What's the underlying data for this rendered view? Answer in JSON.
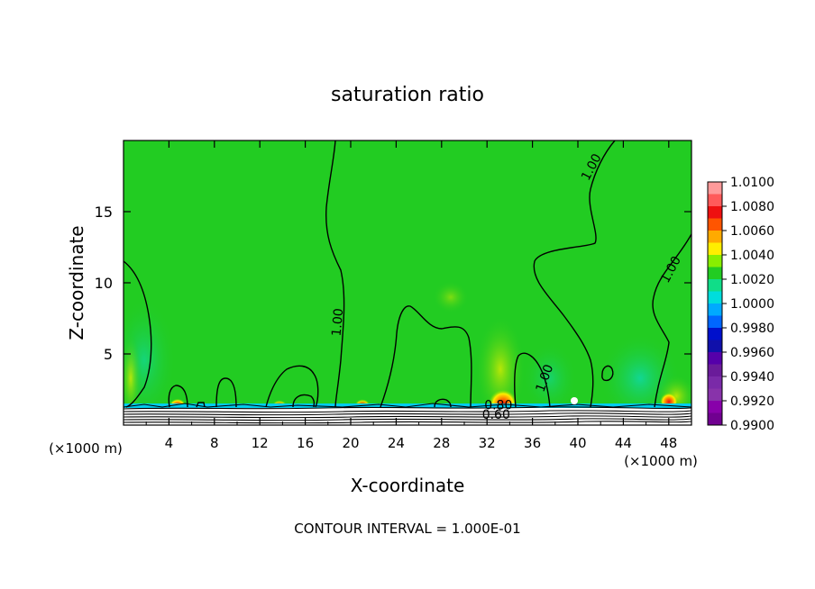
{
  "chart_data": {
    "type": "contour",
    "title": "saturation ratio",
    "xlabel": "X-coordinate",
    "ylabel": "Z-coordinate",
    "x_unit_left": "(×1000 m)",
    "x_unit_right": "(×1000 m)",
    "footnote": "CONTOUR INTERVAL = 1.000E-01",
    "xlim": [
      0,
      50
    ],
    "ylim": [
      0,
      20
    ],
    "x_ticks": [
      4,
      8,
      12,
      16,
      20,
      24,
      28,
      32,
      36,
      40,
      44,
      48
    ],
    "y_ticks": [
      5,
      10,
      15
    ],
    "x_tick_labels": [
      "4",
      "8",
      "12",
      "16",
      "20",
      "24",
      "28",
      "32",
      "36",
      "40",
      "44",
      "48"
    ],
    "y_tick_labels": [
      "5",
      "10",
      "15"
    ],
    "contour_labels": [
      {
        "text": "1.00",
        "x": 41.5,
        "y": 18,
        "angle": -62
      },
      {
        "text": "1.00",
        "x": 48.5,
        "y": 10.8,
        "angle": -62
      },
      {
        "text": "1.00",
        "x": 19.2,
        "y": 7.2,
        "angle": -85
      },
      {
        "text": "1.00",
        "x": 37.4,
        "y": 3.2,
        "angle": -70
      },
      {
        "text": "0.80",
        "x": 33.0,
        "y": 1.1,
        "angle": 0
      },
      {
        "text": "0.60",
        "x": 32.8,
        "y": 0.45,
        "angle": 0
      }
    ],
    "colorbar": {
      "levels": [
        "1.0100",
        "1.0080",
        "1.0060",
        "1.0040",
        "1.0020",
        "1.0000",
        "0.9980",
        "0.9960",
        "0.9940",
        "0.9920",
        "0.9900"
      ],
      "colors": [
        "#ff9a9a",
        "#ff5a5a",
        "#ee1010",
        "#ff5500",
        "#ffaa00",
        "#ffee00",
        "#88ee00",
        "#22cc22",
        "#10dd88",
        "#00dddd",
        "#00aaff",
        "#0066ff",
        "#0010cc",
        "#1010aa",
        "#5500aa",
        "#6a1b9a",
        "#7a2aa8",
        "#8833aa",
        "#8800aa",
        "#700090"
      ],
      "field_color": "#22cc22"
    }
  }
}
